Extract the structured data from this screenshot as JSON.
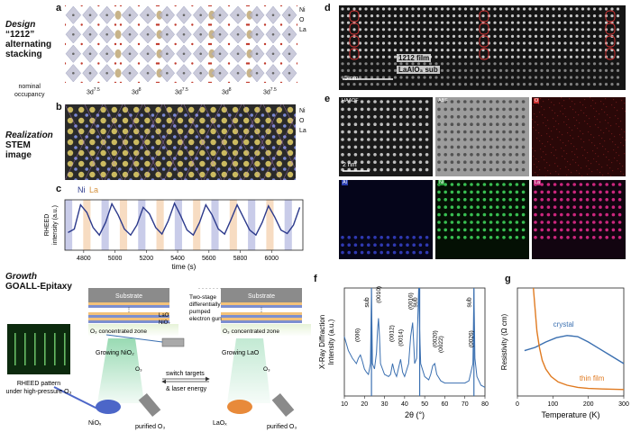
{
  "panels": {
    "a": {
      "label": "a",
      "title_italic": "Design",
      "title_lines": [
        "“1212”",
        "alternating",
        "stacking"
      ],
      "legend": [
        "Ni",
        "O",
        "La"
      ],
      "occupancy_label": [
        "nominal",
        "occupancy"
      ],
      "occupancies": [
        "3d",
        "3d",
        "3d",
        "3d",
        "3d"
      ],
      "occupancy_sup": [
        "7.5",
        "8",
        "7.5",
        "8",
        "7.5"
      ]
    },
    "b": {
      "label": "b",
      "title_italic": "Realization",
      "title_lines": [
        "STEM",
        "image"
      ],
      "legend": [
        "Ni",
        "O",
        "La"
      ]
    },
    "c": {
      "label": "c",
      "markers": [
        "Ni",
        "La"
      ],
      "ylabel_lines": [
        "RHEED",
        "intensity (a.u.)"
      ],
      "xlabel": "time (s)",
      "xticks": [
        "4800",
        "5000",
        "5200",
        "5400",
        "5600",
        "5800",
        "6000"
      ]
    },
    "growth": {
      "title_italic": "Growth",
      "title_bold": "GOALL-Epitaxy",
      "substrate": "Substrate",
      "layers": [
        "LaO",
        "NiO₂"
      ],
      "gun_label": [
        "Two-stage",
        "differentially",
        "pumped",
        "electron gun"
      ],
      "zone_label": "O₃ concentrated zone",
      "growing_nio2": "Growing NiO₂",
      "growing_lao": "Growing LaO",
      "switch_label": [
        "switch targets",
        "& laser energy"
      ],
      "o3": "O₃",
      "target_left": "NiOₓ",
      "target_right": "LaOₓ",
      "purified": "purified O₃",
      "rheed_caption": [
        "RHEED pattern",
        "under high-pressure O₃"
      ]
    },
    "d": {
      "label": "d",
      "film_label": "1212 film",
      "sub_label": "LaAlO₃ sub",
      "scale": "5 nm"
    },
    "e": {
      "label": "e",
      "tiles": [
        "HAADF",
        "ABF",
        "O",
        "Al",
        "Ni",
        "La"
      ],
      "scale": "2 nm"
    },
    "f": {
      "label": "f",
      "ylabel_lines": [
        "X-Ray Diffraction",
        "Intensity (a.u.)"
      ],
      "xlabel": "2θ (°)",
      "xticks": [
        "10",
        "20",
        "30",
        "40",
        "50",
        "60",
        "70",
        "80"
      ],
      "peaks": [
        "(006)",
        "(0010)",
        "(0012)",
        "(0014)",
        "(0016)",
        "(0020)",
        "(0022)",
        "(0026)"
      ],
      "sub_marks": [
        "sub",
        "sub",
        "sub"
      ]
    },
    "g": {
      "label": "g",
      "ylabel": "Resistivity (Ω cm)",
      "xlabel": "Temperature (K)",
      "xticks": [
        "0",
        "100",
        "200",
        "300"
      ],
      "series": [
        "crystal",
        "thin film"
      ]
    }
  },
  "chart_data": [
    {
      "type": "line",
      "panel": "c",
      "xlabel": "time (s)",
      "ylabel": "RHEED intensity (a.u.)",
      "xlim": [
        4680,
        6200
      ],
      "ylim": [
        0,
        1
      ],
      "x": [
        4700,
        4740,
        4780,
        4820,
        4860,
        4900,
        4940,
        4980,
        5020,
        5060,
        5100,
        5140,
        5180,
        5220,
        5260,
        5300,
        5340,
        5380,
        5420,
        5460,
        5500,
        5540,
        5580,
        5620,
        5660,
        5700,
        5740,
        5780,
        5820,
        5860,
        5900,
        5940,
        5980,
        6020,
        6060,
        6100,
        6140,
        6180
      ],
      "series": [
        {
          "name": "",
          "values": [
            0.35,
            0.42,
            0.9,
            0.75,
            0.45,
            0.3,
            0.55,
            0.92,
            0.7,
            0.42,
            0.3,
            0.5,
            0.85,
            0.72,
            0.45,
            0.32,
            0.58,
            0.93,
            0.68,
            0.4,
            0.3,
            0.55,
            0.9,
            0.7,
            0.42,
            0.32,
            0.6,
            0.9,
            0.65,
            0.4,
            0.3,
            0.55,
            0.88,
            0.66,
            0.4,
            0.33,
            0.5,
            0.85
          ]
        }
      ],
      "color": "#2c3a8c"
    },
    {
      "type": "line",
      "panel": "f",
      "xlabel": "2θ (°)",
      "ylabel": "X-Ray Diffraction Intensity (a.u.)",
      "xlim": [
        10,
        80
      ],
      "x": [
        10,
        12,
        14,
        16,
        17,
        18,
        19,
        20,
        21,
        22,
        23,
        23.5,
        24,
        25,
        26,
        26.5,
        27,
        27.5,
        28,
        30,
        32,
        33,
        34,
        35,
        36,
        37,
        38,
        39,
        40,
        42,
        43,
        44,
        44.5,
        45,
        46,
        47,
        47.5,
        48,
        50,
        52,
        53,
        54,
        55,
        56,
        58,
        60,
        62,
        64,
        66,
        68,
        70,
        72,
        73,
        74,
        74.5,
        75,
        76,
        78,
        80
      ],
      "series": [
        {
          "name": "",
          "values": [
            0.55,
            0.42,
            0.35,
            0.3,
            0.35,
            0.38,
            0.32,
            0.25,
            0.22,
            0.2,
            0.3,
            0.98,
            0.3,
            0.25,
            0.4,
            0.6,
            0.72,
            0.55,
            0.3,
            0.2,
            0.18,
            0.2,
            0.3,
            0.22,
            0.18,
            0.26,
            0.34,
            0.22,
            0.18,
            0.3,
            0.55,
            0.68,
            0.5,
            0.3,
            0.35,
            1.0,
            0.6,
            0.3,
            0.18,
            0.15,
            0.2,
            0.28,
            0.3,
            0.2,
            0.14,
            0.12,
            0.12,
            0.12,
            0.12,
            0.12,
            0.12,
            0.14,
            0.22,
            0.3,
            0.99,
            0.35,
            0.18,
            0.1,
            0.08
          ]
        }
      ],
      "sub_positions": [
        23.5,
        47.5,
        74.5
      ],
      "color": "#3a6fb0"
    },
    {
      "type": "line",
      "panel": "g",
      "xlabel": "Temperature (K)",
      "ylabel": "Resistivity (Ω cm)",
      "xlim": [
        0,
        300
      ],
      "ylim": [
        0,
        1
      ],
      "series": [
        {
          "name": "crystal",
          "color": "#3a6fb0",
          "x": [
            20,
            50,
            80,
            110,
            140,
            170,
            200,
            230,
            260,
            300
          ],
          "values": [
            0.42,
            0.45,
            0.5,
            0.54,
            0.56,
            0.55,
            0.5,
            0.44,
            0.38,
            0.3
          ]
        },
        {
          "name": "thin film",
          "color": "#e07a20",
          "x": [
            45,
            50,
            55,
            62,
            70,
            80,
            95,
            115,
            140,
            170,
            200,
            240,
            300
          ],
          "values": [
            1.0,
            0.8,
            0.6,
            0.45,
            0.33,
            0.25,
            0.18,
            0.13,
            0.1,
            0.08,
            0.07,
            0.065,
            0.06
          ]
        }
      ]
    }
  ]
}
